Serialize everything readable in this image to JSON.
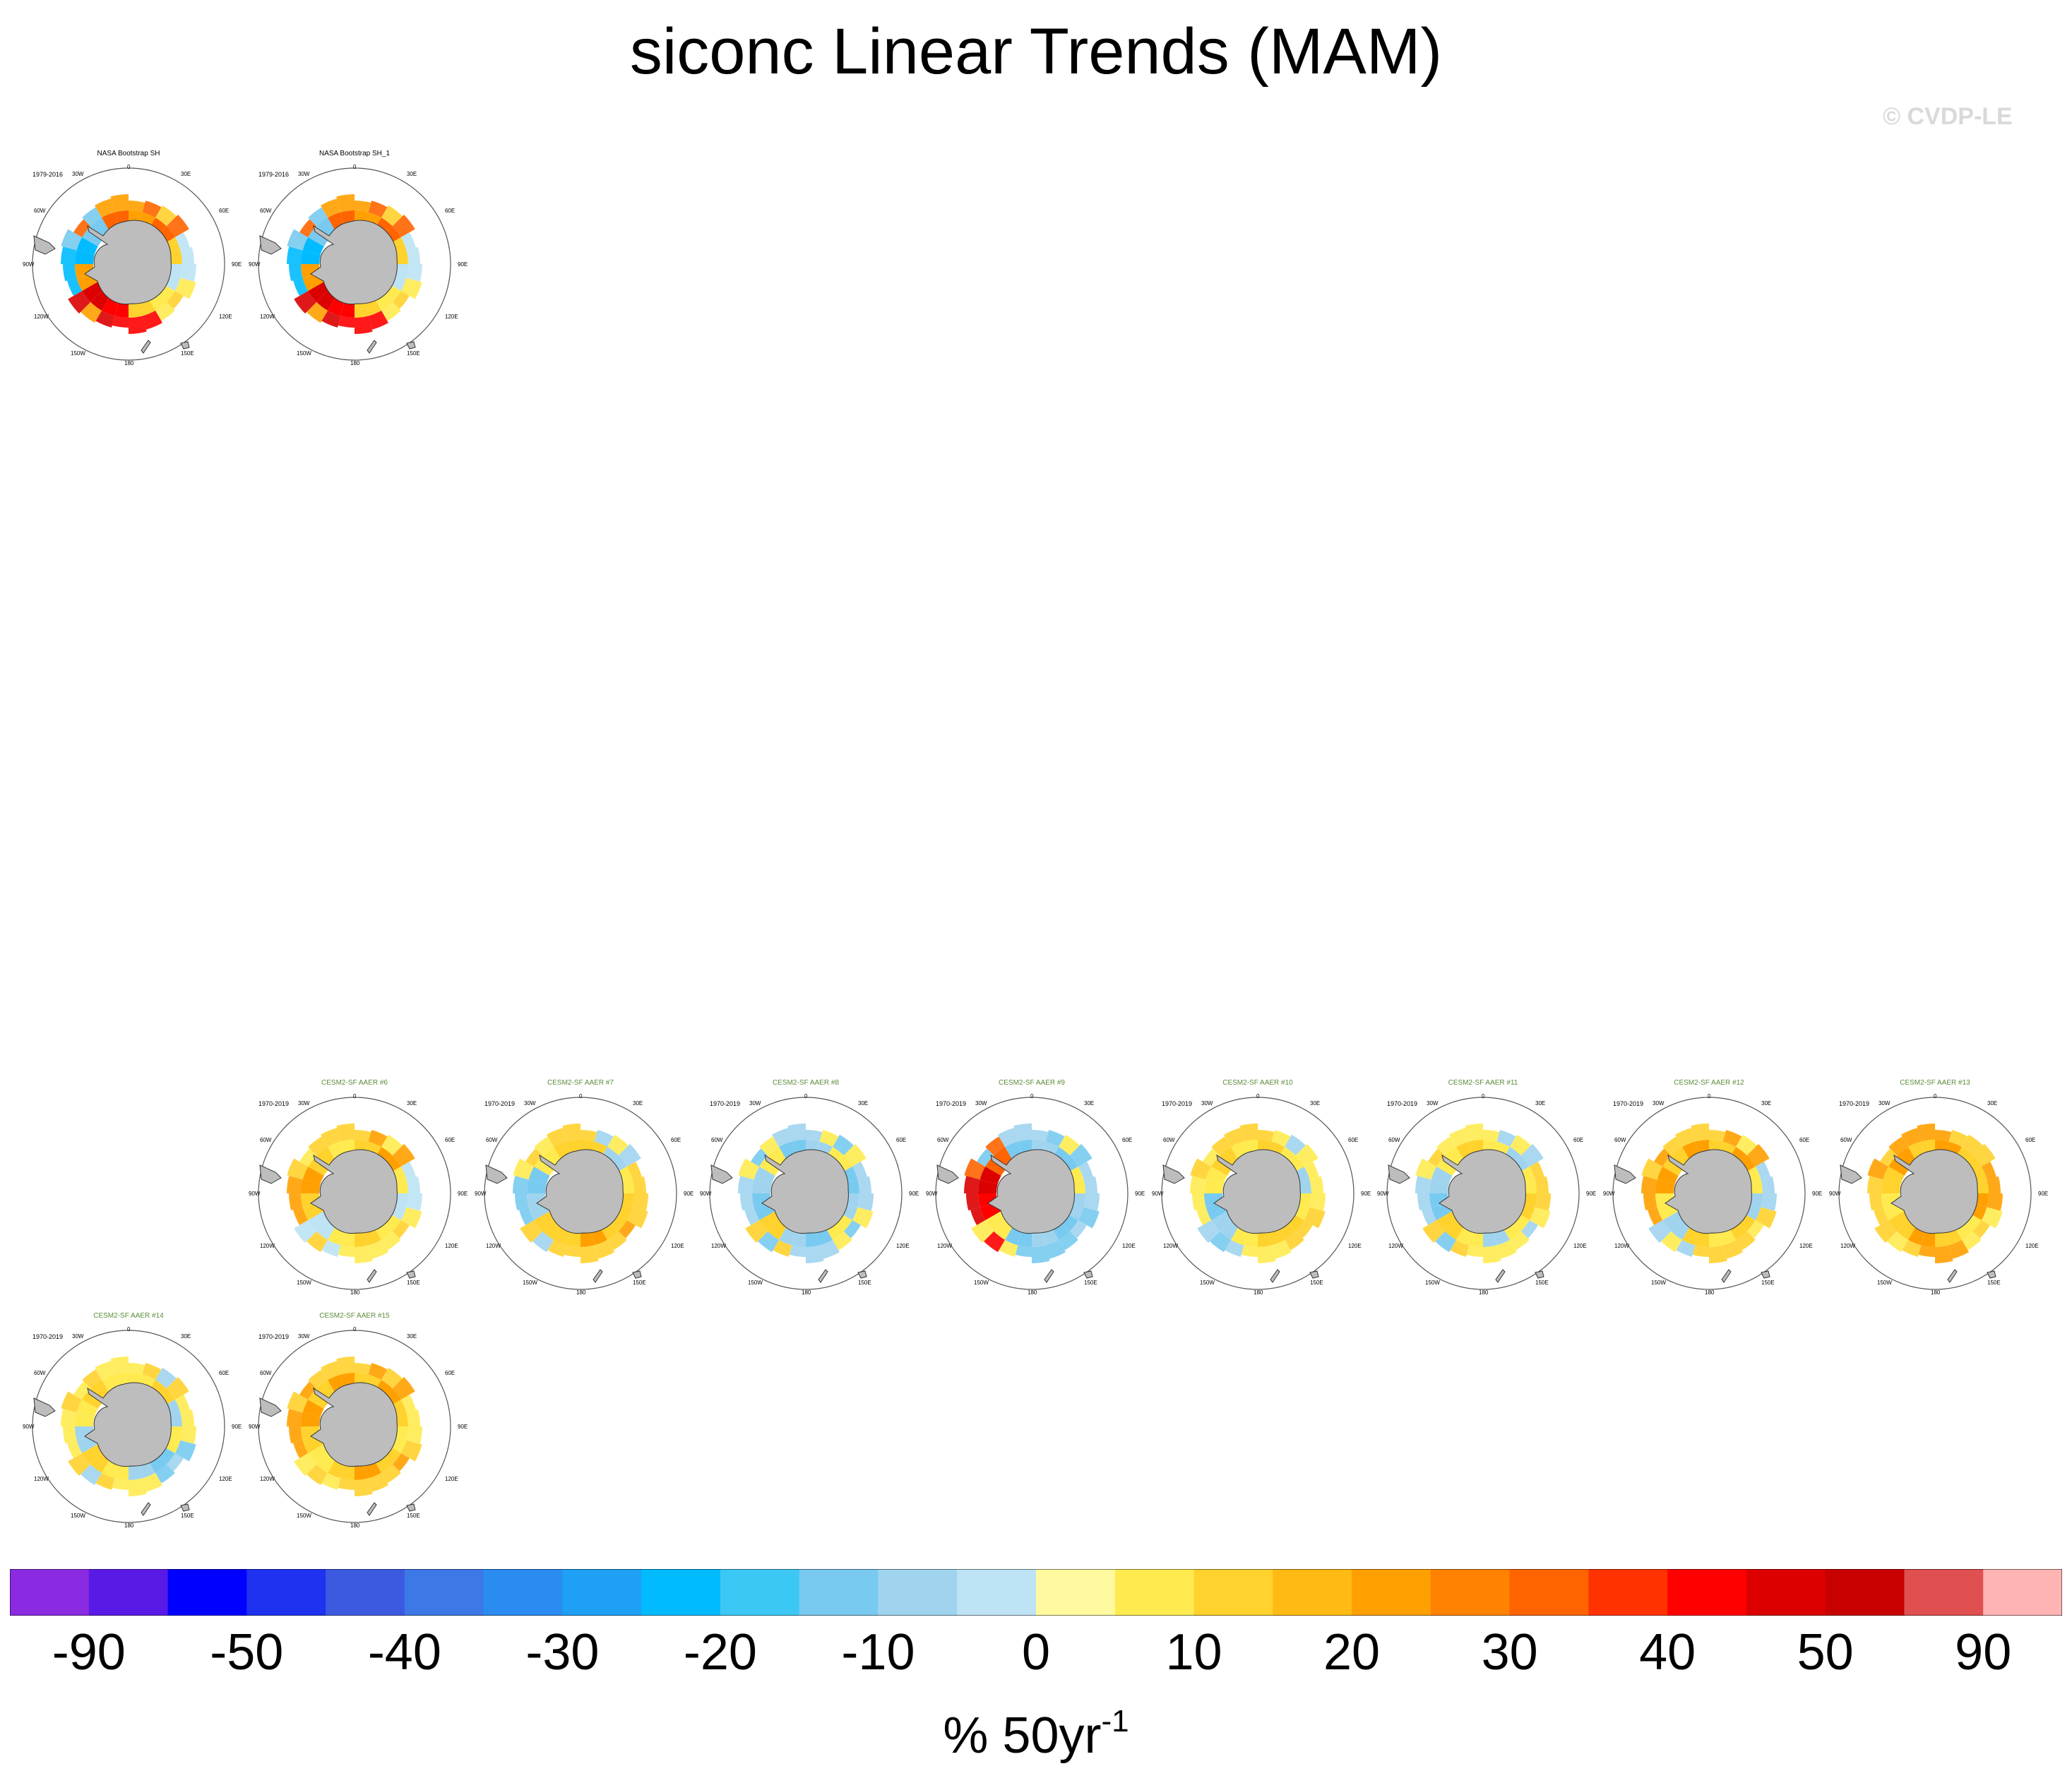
{
  "title": "siconc Linear Trends (MAM)",
  "copyright": "© CVDP-LE",
  "map_projection": "south-polar-stereographic",
  "map_colors": {
    "land": "#bdbdbd",
    "coast": "#333333",
    "frame": "#555555"
  },
  "lon_labels": {
    "top": "0",
    "top_l": "30W",
    "top_r": "30E",
    "ul": "60W",
    "ur": "60E",
    "l": "90W",
    "r": "90E",
    "ll": "120W",
    "lr": "120E",
    "bot_l": "150W",
    "bot_r": "150E",
    "bottom": "180"
  },
  "panels": [
    {
      "title": "NASA Bootstrap SH",
      "period": "1979-2016",
      "kind": "obs",
      "pattern": 0
    },
    {
      "title": "NASA Bootstrap SH_1",
      "period": "1979-2016",
      "kind": "obs",
      "pattern": 0
    },
    {
      "title": "CESM2-SF AAER #6",
      "period": "1970-2019",
      "kind": "model",
      "pattern": 1
    },
    {
      "title": "CESM2-SF AAER #7",
      "period": "1970-2019",
      "kind": "model",
      "pattern": 2
    },
    {
      "title": "CESM2-SF AAER #8",
      "period": "1970-2019",
      "kind": "model",
      "pattern": 3
    },
    {
      "title": "CESM2-SF AAER #9",
      "period": "1970-2019",
      "kind": "model",
      "pattern": 4
    },
    {
      "title": "CESM2-SF AAER #10",
      "period": "1970-2019",
      "kind": "model",
      "pattern": 5
    },
    {
      "title": "CESM2-SF AAER #11",
      "period": "1970-2019",
      "kind": "model",
      "pattern": 6
    },
    {
      "title": "CESM2-SF AAER #12",
      "period": "1970-2019",
      "kind": "model",
      "pattern": 7
    },
    {
      "title": "CESM2-SF AAER #13",
      "period": "1970-2019",
      "kind": "model",
      "pattern": 8
    },
    {
      "title": "CESM2-SF AAER #14",
      "period": "1970-2019",
      "kind": "model",
      "pattern": 9
    },
    {
      "title": "CESM2-SF AAER #15",
      "period": "1970-2019",
      "kind": "model",
      "pattern": 10
    }
  ],
  "colorbar": {
    "colors": [
      "#8a2be2",
      "#5a1ae6",
      "#0000ff",
      "#1e32ef",
      "#3c5adf",
      "#3c78e6",
      "#2a8cf0",
      "#1ea0f5",
      "#00bbff",
      "#3cc8f5",
      "#78caf0",
      "#a0d4ee",
      "#bde3f4",
      "#fffaa0",
      "#ffeb50",
      "#ffd22d",
      "#ffbb14",
      "#ffa000",
      "#ff8200",
      "#ff6400",
      "#ff3200",
      "#ff0000",
      "#dc0000",
      "#c80000",
      "#e05050",
      "#ffb4b4"
    ],
    "labels": [
      "-90",
      "-50",
      "-40",
      "-30",
      "-20",
      "-10",
      "0",
      "10",
      "20",
      "30",
      "40",
      "50",
      "90"
    ],
    "units_main": "% 50yr",
    "units_sup": "-1"
  }
}
